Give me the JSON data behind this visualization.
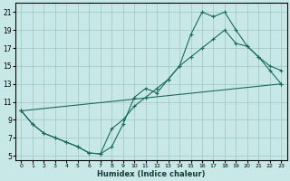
{
  "xlabel": "Humidex (Indice chaleur)",
  "background_color": "#c8e8e8",
  "grid_color": "#a0c4c4",
  "line_color": "#1a6b5a",
  "xlim": [
    -0.5,
    23.5
  ],
  "ylim": [
    4.5,
    22
  ],
  "xticks": [
    0,
    1,
    2,
    3,
    4,
    5,
    6,
    7,
    8,
    9,
    10,
    11,
    12,
    13,
    14,
    15,
    16,
    17,
    18,
    19,
    20,
    21,
    22,
    23
  ],
  "yticks": [
    5,
    7,
    9,
    11,
    13,
    15,
    17,
    19,
    21
  ],
  "curve1_x": [
    0,
    1,
    2,
    3,
    4,
    5,
    6,
    7,
    8,
    9,
    10,
    11,
    12,
    13,
    14,
    15,
    16,
    17,
    18,
    19,
    20,
    21,
    22,
    23
  ],
  "curve1_y": [
    10.0,
    8.5,
    7.5,
    7.0,
    6.5,
    6.0,
    5.3,
    5.2,
    6.0,
    8.5,
    11.5,
    12.5,
    12.0,
    13.5,
    15.0,
    18.5,
    21.0,
    20.5,
    21.0,
    19.0,
    17.2,
    16.0,
    14.5,
    13.0
  ],
  "curve2_x": [
    0,
    1,
    2,
    3,
    4,
    5,
    6,
    7,
    8,
    9,
    10,
    11,
    12,
    13,
    14,
    15,
    16,
    17,
    18,
    19,
    20,
    21,
    22,
    23
  ],
  "curve2_y": [
    10.0,
    8.5,
    7.5,
    7.0,
    6.5,
    6.0,
    5.3,
    5.2,
    8.0,
    9.0,
    10.5,
    11.5,
    12.5,
    13.5,
    15.0,
    16.0,
    17.0,
    18.0,
    19.0,
    17.5,
    17.2,
    16.0,
    15.0,
    14.5
  ],
  "curve3_x": [
    0,
    23
  ],
  "curve3_y": [
    10.0,
    13.0
  ]
}
